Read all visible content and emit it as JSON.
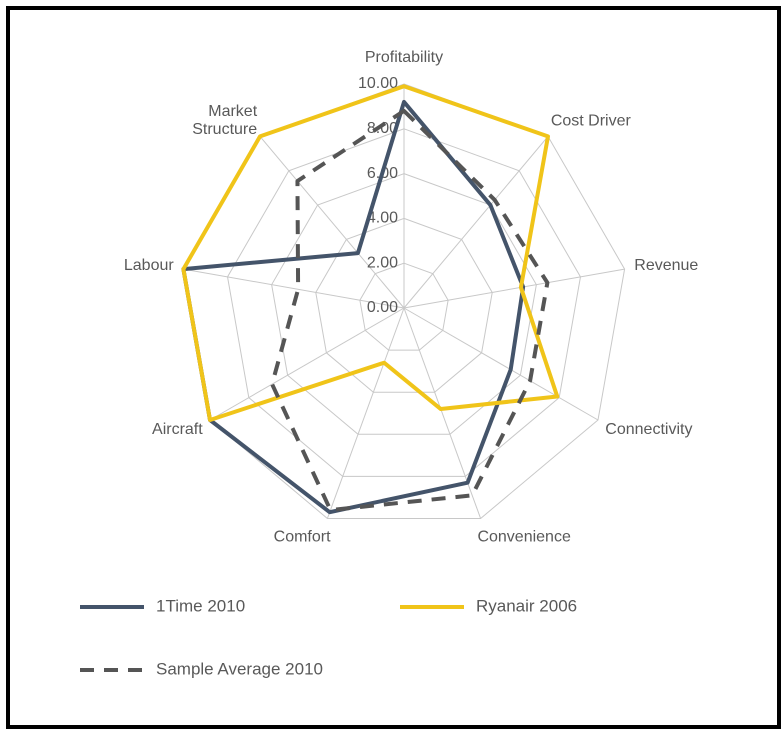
{
  "chart_data": {
    "type": "radar",
    "categories": [
      "Profitability",
      "Cost Driver",
      "Revenue",
      "Connectivity",
      "Convenience",
      "Comfort",
      "Aircraft",
      "Labour",
      [
        "Market",
        "Structure"
      ]
    ],
    "ylim": [
      0,
      10
    ],
    "yticks": [
      {
        "value": 0,
        "label": "0.00"
      },
      {
        "value": 2,
        "label": "2.00"
      },
      {
        "value": 4,
        "label": "4.00"
      },
      {
        "value": 6,
        "label": "6.00"
      },
      {
        "value": 8,
        "label": "8.00"
      },
      {
        "value": 10,
        "label": "10.00"
      }
    ],
    "grid": true,
    "series": [
      {
        "name": "1Time 2010",
        "color": "#44546a",
        "dash": false,
        "values": [
          9.2,
          6.0,
          5.4,
          5.5,
          8.3,
          9.7,
          10.0,
          10.0,
          3.2
        ]
      },
      {
        "name": "Ryanair 2006",
        "color": "#f0c419",
        "dash": false,
        "values": [
          9.9,
          10.0,
          5.3,
          7.9,
          4.8,
          2.6,
          10.0,
          10.0,
          10.0
        ]
      },
      {
        "name": "Sample Average 2010",
        "color": "#555555",
        "dash": true,
        "values": [
          8.8,
          6.3,
          6.5,
          6.5,
          8.9,
          9.6,
          6.8,
          4.8,
          7.4
        ]
      }
    ]
  }
}
